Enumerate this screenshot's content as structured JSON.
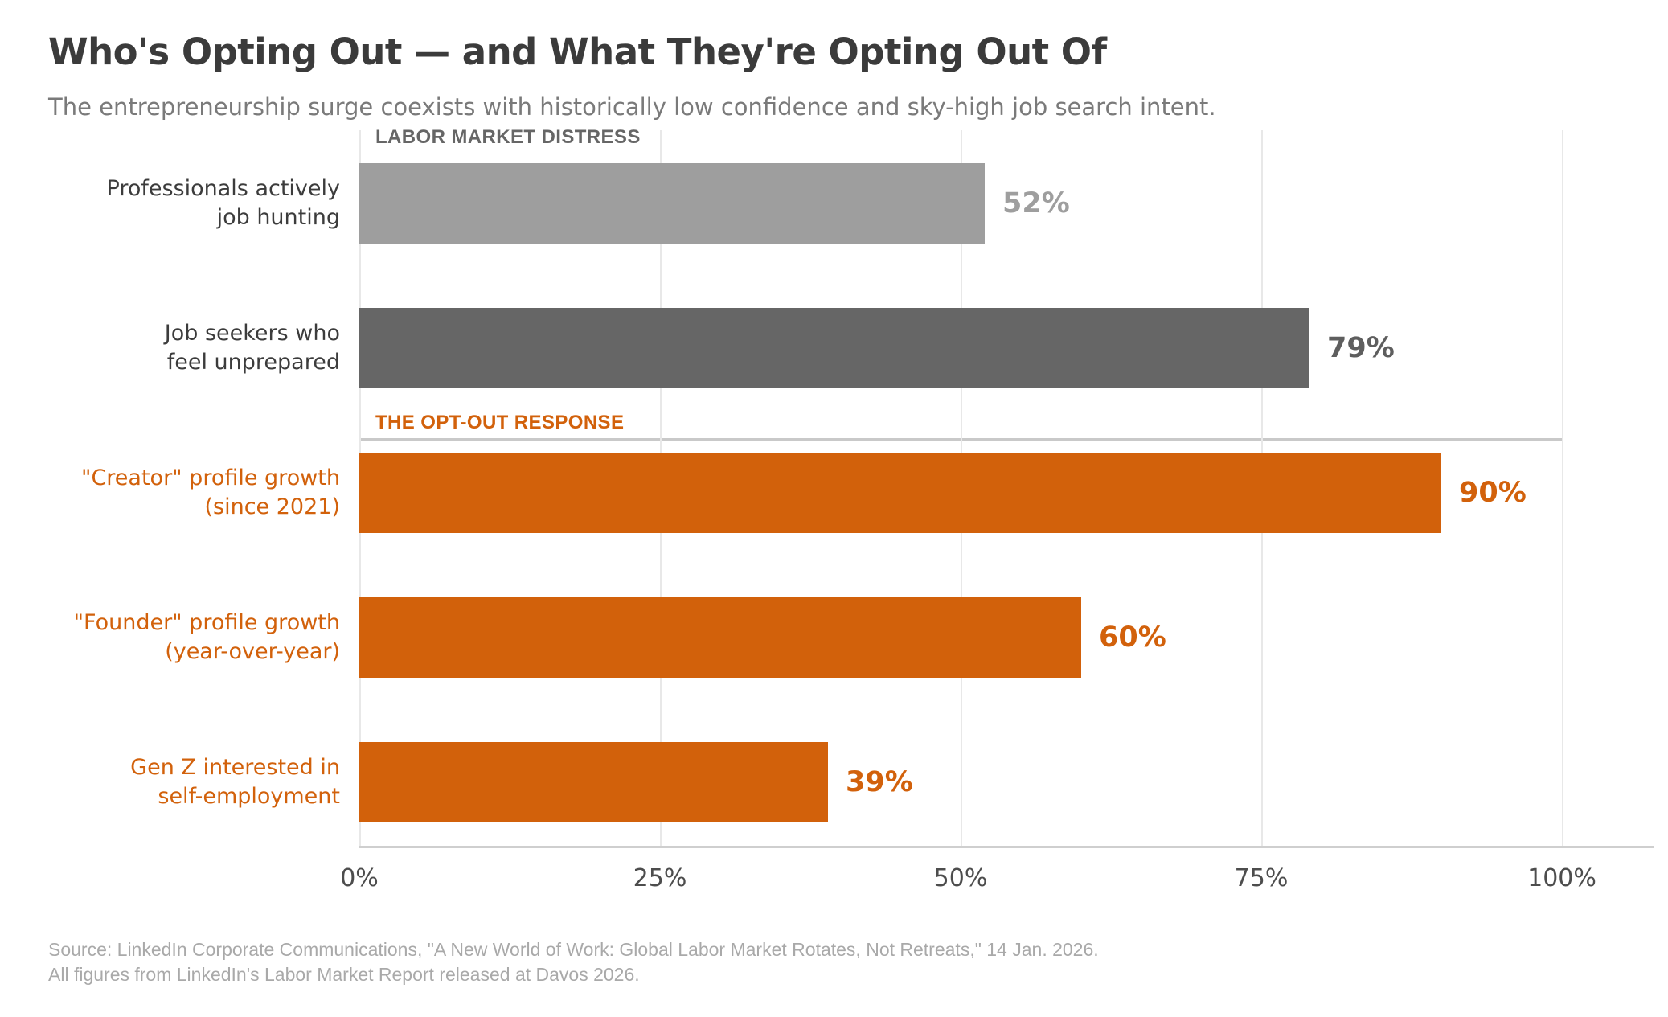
{
  "title": "Who's Opting Out — and What They're Opting Out Of",
  "subtitle": "The entrepreneurship surge coexists with historically low confidence and sky-high job search intent.",
  "sections": {
    "distress_label": "LABOR MARKET DISTRESS",
    "optout_label": "THE OPT-OUT RESPONSE"
  },
  "colors": {
    "accent_orange": "#D2610B",
    "light_gray_bar": "#9E9E9E",
    "dark_gray_bar": "#666666",
    "gridline": "#E8E8E8",
    "axis_line": "#CFCFCF",
    "separator": "#C9C9C9",
    "title_text": "#3B3B3B",
    "subtitle_text": "#7A7A7A",
    "source_text": "#A9A9A9"
  },
  "chart_data": {
    "type": "bar",
    "orientation": "horizontal",
    "title": "Who's Opting Out — and What They're Opting Out Of",
    "subtitle": "The entrepreneurship surge coexists with historically low confidence and sky-high job search intent.",
    "xlabel": "",
    "ylabel": "",
    "xlim": [
      0,
      107.5
    ],
    "grid": true,
    "legend": "none",
    "x_ticks": [
      {
        "label": "0%",
        "value": 0
      },
      {
        "label": "25%",
        "value": 25
      },
      {
        "label": "50%",
        "value": 50
      },
      {
        "label": "75%",
        "value": 75
      },
      {
        "label": "100%",
        "value": 100
      }
    ],
    "bars": [
      {
        "category_lines": [
          "Professionals actively",
          "job hunting"
        ],
        "value": 52,
        "value_label": "52%",
        "group": "LABOR MARKET DISTRESS",
        "bar_color": "#9E9E9E",
        "category_color": "#3C3C3C",
        "value_color": "#9E9E9E"
      },
      {
        "category_lines": [
          "Job seekers who",
          "feel unprepared"
        ],
        "value": 79,
        "value_label": "79%",
        "group": "LABOR MARKET DISTRESS",
        "bar_color": "#666666",
        "category_color": "#3C3C3C",
        "value_color": "#5E5E5E"
      },
      {
        "category_lines": [
          "\"Creator\" profile growth",
          "(since 2021)"
        ],
        "value": 90,
        "value_label": "90%",
        "group": "THE OPT-OUT RESPONSE",
        "bar_color": "#D2610B",
        "category_color": "#D2610B",
        "value_color": "#D2610B"
      },
      {
        "category_lines": [
          "\"Founder\" profile growth",
          "(year-over-year)"
        ],
        "value": 60,
        "value_label": "60%",
        "group": "THE OPT-OUT RESPONSE",
        "bar_color": "#D2610B",
        "category_color": "#D2610B",
        "value_color": "#D2610B"
      },
      {
        "category_lines": [
          "Gen Z interested in",
          "self-employment"
        ],
        "value": 39,
        "value_label": "39%",
        "group": "THE OPT-OUT RESPONSE",
        "bar_color": "#D2610B",
        "category_color": "#D2610B",
        "value_color": "#D2610B"
      }
    ]
  },
  "source_lines": [
    "Source: LinkedIn Corporate Communications, \"A New World of Work: Global Labor Market Rotates, Not Retreats,\" 14 Jan. 2026.",
    "All figures from LinkedIn's Labor Market Report released at Davos 2026."
  ]
}
